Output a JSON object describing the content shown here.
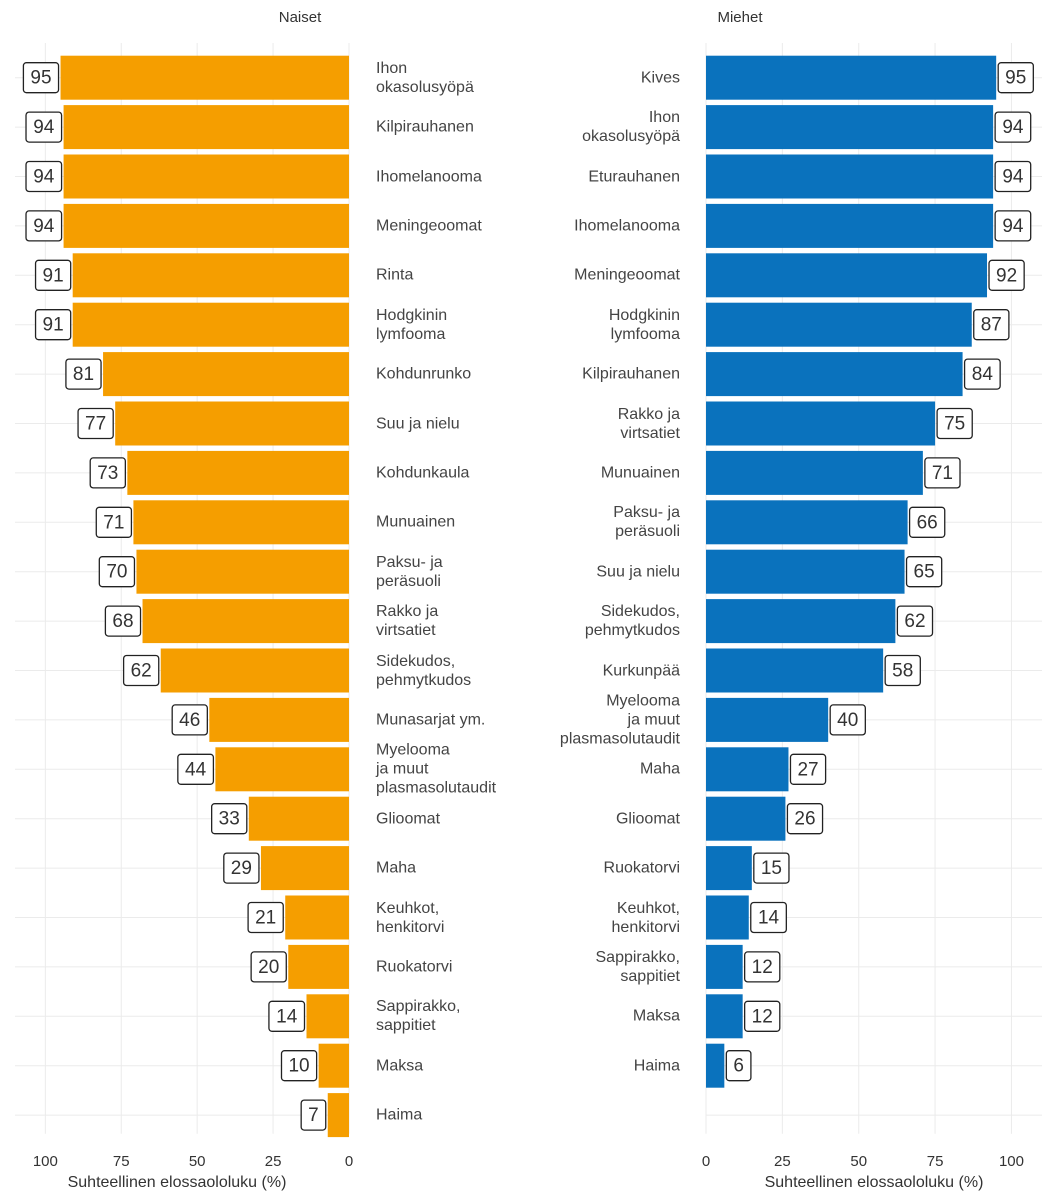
{
  "chart_data": [
    {
      "type": "bar",
      "orientation": "horizontal",
      "x_reversed": true,
      "title": "Naiset",
      "xlabel": "Suhteellinen elossaololuku (%)",
      "color": "#f59e00",
      "grid": true,
      "xlim": [
        0,
        110
      ],
      "xticks": [
        0,
        25,
        50,
        75,
        100
      ],
      "categories": [
        "Ihon\nokasolusyöpä",
        "Kilpirauhanen",
        "Ihomelanooma",
        "Meningeoomat",
        "Rinta",
        "Hodgkinin\nlymfooma",
        "Kohdunrunko",
        "Suu ja nielu",
        "Kohdunkaula",
        "Munuainen",
        "Paksu- ja\nperäsuoli",
        "Rakko ja\nvirtsatiet",
        "Sidekudos,\npehmytkudos",
        "Munasarjat ym.",
        "Myelooma\nja muut\nplasmasolutaudit",
        "Glioomat",
        "Maha",
        "Keuhkot,\nhenkitorvi",
        "Ruokatorvi",
        "Sappirakko,\nsappitiet",
        "Maksa",
        "Haima"
      ],
      "values": [
        95,
        94,
        94,
        94,
        91,
        91,
        81,
        77,
        73,
        71,
        70,
        68,
        62,
        46,
        44,
        33,
        29,
        21,
        20,
        14,
        10,
        7
      ]
    },
    {
      "type": "bar",
      "orientation": "horizontal",
      "x_reversed": false,
      "title": "Miehet",
      "xlabel": "Suhteellinen elossaololuku (%)",
      "color": "#0a72bd",
      "grid": true,
      "xlim": [
        0,
        110
      ],
      "xticks": [
        0,
        25,
        50,
        75,
        100
      ],
      "categories": [
        "Kives",
        "Ihon\nokasolusyöpä",
        "Eturauhanen",
        "Ihomelanooma",
        "Meningeoomat",
        "Hodgkinin\nlymfooma",
        "Kilpirauhanen",
        "Rakko ja\nvirtsatiet",
        "Munuainen",
        "Paksu- ja\nperäsuoli",
        "Suu ja nielu",
        "Sidekudos,\npehmytkudos",
        "Kurkunpää",
        "Myelooma\nja muut\nplasmasolutaudit",
        "Maha",
        "Glioomat",
        "Ruokatorvi",
        "Keuhkot,\nhenkitorvi",
        "Sappirakko,\nsappitiet",
        "Maksa",
        "Haima"
      ],
      "values": [
        95,
        94,
        94,
        94,
        92,
        87,
        84,
        75,
        71,
        66,
        65,
        62,
        58,
        40,
        27,
        26,
        15,
        14,
        12,
        12,
        6
      ]
    }
  ]
}
